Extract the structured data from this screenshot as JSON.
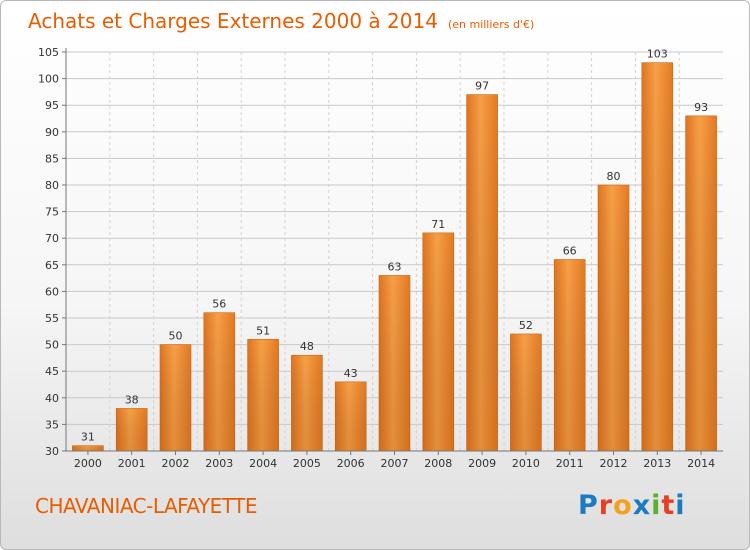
{
  "header": {
    "title": "Achats et Charges Externes 2000 à 2014",
    "subtitle": "(en milliers d'€)"
  },
  "footer": {
    "commune": "CHAVANIAC-LAFAYETTE",
    "logo_letters": [
      "P",
      "r",
      "o",
      "x",
      "i",
      "t",
      "i"
    ],
    "logo_colors": [
      "#1d79c0",
      "#e83e1f",
      "#f5a11c",
      "#1d79c0",
      "#5ab02f",
      "#e83e1f",
      "#1d79c0"
    ]
  },
  "chart_data": {
    "type": "bar",
    "title": "Achats et Charges Externes 2000 à 2014",
    "categories": [
      "2000",
      "2001",
      "2002",
      "2003",
      "2004",
      "2005",
      "2006",
      "2007",
      "2008",
      "2009",
      "2010",
      "2011",
      "2012",
      "2013",
      "2014"
    ],
    "values": [
      31,
      38,
      50,
      56,
      51,
      48,
      43,
      63,
      71,
      97,
      52,
      66,
      80,
      103,
      93
    ],
    "ylim": [
      30,
      105
    ],
    "yticks": [
      30,
      35,
      40,
      45,
      50,
      55,
      60,
      65,
      70,
      75,
      80,
      85,
      90,
      95,
      100,
      105
    ],
    "grid": true,
    "bar_color": "#f08a24"
  }
}
